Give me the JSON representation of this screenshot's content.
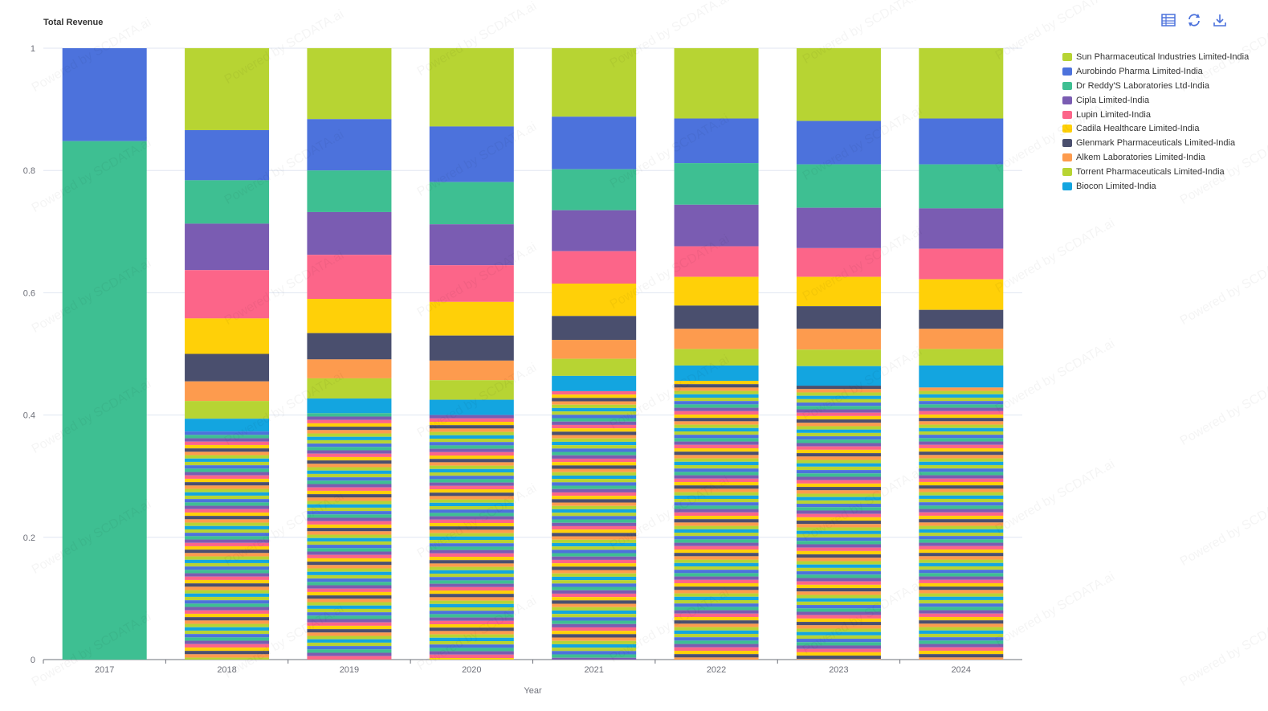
{
  "header": {
    "title": "Total Revenue"
  },
  "toolbar": {
    "icons": [
      "data-view-icon",
      "refresh-icon",
      "download-icon"
    ]
  },
  "watermark_text": "Powered by SCDATA.ai",
  "palette": [
    "#b7d433",
    "#4c72dc",
    "#3ebf92",
    "#7a5cb2",
    "#fc6589",
    "#ffd008",
    "#4a4f6e",
    "#fd9b4e",
    "#b7d433",
    "#13a5e0"
  ],
  "chart_data": {
    "type": "bar",
    "stacked": true,
    "title": "Total Revenue",
    "xlabel": "Year",
    "ylabel": "",
    "ylim": [
      0,
      1
    ],
    "yticks": [
      "0",
      "0.2",
      "0.4",
      "0.6",
      "0.8",
      "1"
    ],
    "grid": true,
    "legend_position": "right",
    "categories": [
      "2017",
      "2018",
      "2019",
      "2020",
      "2021",
      "2022",
      "2023",
      "2024"
    ],
    "series": [
      {
        "name": "Sun Pharmaceutical Industries Limited-India",
        "color": "#b7d433",
        "values": [
          0,
          0.134,
          0.116,
          0.128,
          0.112,
          0.115,
          0.119,
          0.115
        ]
      },
      {
        "name": "Aurobindo Pharma Limited-India",
        "color": "#4c72dc",
        "values": [
          0.152,
          0.082,
          0.084,
          0.091,
          0.086,
          0.073,
          0.071,
          0.075
        ]
      },
      {
        "name": "Dr Reddy'S Laboratories Ltd-India",
        "color": "#3ebf92",
        "values": [
          0.848,
          0.071,
          0.068,
          0.069,
          0.067,
          0.068,
          0.071,
          0.072
        ]
      },
      {
        "name": "Cipla Limited-India",
        "color": "#7a5cb2",
        "values": [
          0,
          0.076,
          0.07,
          0.067,
          0.067,
          0.068,
          0.066,
          0.066
        ]
      },
      {
        "name": "Lupin Limited-India",
        "color": "#fc6589",
        "values": [
          0,
          0.079,
          0.072,
          0.06,
          0.053,
          0.05,
          0.047,
          0.05
        ]
      },
      {
        "name": "Cadila Healthcare Limited-India",
        "color": "#ffd008",
        "values": [
          0,
          0.058,
          0.056,
          0.055,
          0.053,
          0.047,
          0.048,
          0.05
        ]
      },
      {
        "name": "Glenmark Pharmaceuticals Limited-India",
        "color": "#4a4f6e",
        "values": [
          0,
          0.045,
          0.043,
          0.041,
          0.039,
          0.038,
          0.037,
          0.031
        ]
      },
      {
        "name": "Alkem Laboratories Limited-India",
        "color": "#fd9b4e",
        "values": [
          0,
          0.032,
          0.031,
          0.032,
          0.031,
          0.033,
          0.034,
          0.033
        ]
      },
      {
        "name": "Torrent Pharmaceuticals Limited-India",
        "color": "#b7d433",
        "values": [
          0,
          0.029,
          0.033,
          0.032,
          0.028,
          0.027,
          0.027,
          0.027
        ]
      },
      {
        "name": "Biocon Limited-India",
        "color": "#13a5e0",
        "values": [
          0,
          0.021,
          0.024,
          0.025,
          0.025,
          0.025,
          0.032,
          0.036
        ]
      }
    ]
  }
}
